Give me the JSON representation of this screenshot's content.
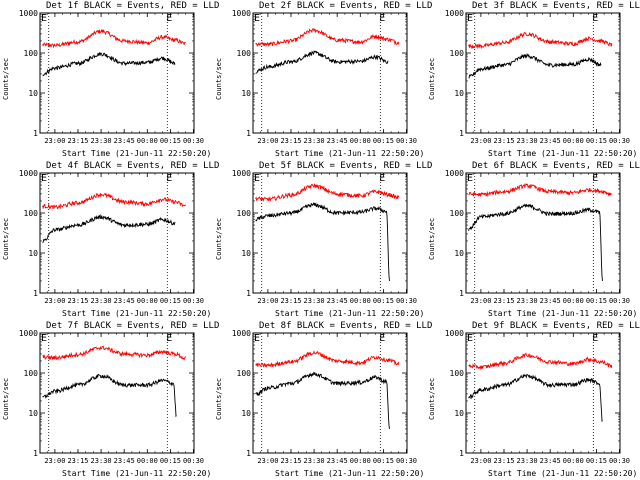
{
  "chart_data": [
    {
      "type": "line",
      "title": "Det 1f BLACK = Events, RED = LLD",
      "xlabel": "Start Time (21-Jun-11 22:50:20)",
      "ylabel": "Counts/sec",
      "yscale": "log",
      "ylim": [
        1,
        1000
      ],
      "ytick_labels": [
        "1",
        "10",
        "100",
        "1000"
      ],
      "xlim": [
        "22:50:20",
        "00:30:20"
      ],
      "xtick_labels": [
        "23:00",
        "23:15",
        "23:30",
        "23:45",
        "00:00",
        "00:15",
        "00:30"
      ],
      "markers_x": [
        "22:56",
        "00:13"
      ],
      "edge_labels": [
        "E",
        "E"
      ],
      "series": [
        {
          "color": "#ff0000",
          "x": [
            "22:52",
            "23:00",
            "23:15",
            "23:30",
            "23:45",
            "00:00",
            "00:10",
            "00:18",
            "00:25"
          ],
          "values": [
            160,
            155,
            190,
            350,
            200,
            180,
            250,
            210,
            170
          ]
        },
        {
          "color": "#000000",
          "x": [
            "22:52",
            "23:00",
            "23:15",
            "23:30",
            "23:45",
            "00:00",
            "00:10",
            "00:18"
          ],
          "values": [
            30,
            42,
            55,
            95,
            55,
            58,
            75,
            55
          ]
        }
      ]
    },
    {
      "type": "line",
      "title": "Det 2f BLACK = Events, RED = LLD",
      "xlabel": "Start Time (21-Jun-11 22:50:20)",
      "ylabel": "Counts/sec",
      "yscale": "log",
      "ylim": [
        1,
        1000
      ],
      "ytick_labels": [
        "1",
        "10",
        "100",
        "1000"
      ],
      "xlim": [
        "22:50:20",
        "00:30:20"
      ],
      "xtick_labels": [
        "23:00",
        "23:15",
        "23:30",
        "23:45",
        "00:00",
        "00:15",
        "00:30"
      ],
      "markers_x": [
        "22:56",
        "00:13"
      ],
      "edge_labels": [
        "E",
        "E"
      ],
      "series": [
        {
          "color": "#ff0000",
          "x": [
            "22:52",
            "23:00",
            "23:15",
            "23:30",
            "23:45",
            "00:00",
            "00:10",
            "00:18",
            "00:25"
          ],
          "values": [
            170,
            165,
            200,
            370,
            210,
            190,
            260,
            220,
            180
          ]
        },
        {
          "color": "#000000",
          "x": [
            "22:52",
            "23:00",
            "23:15",
            "23:30",
            "23:45",
            "00:00",
            "00:10",
            "00:18"
          ],
          "values": [
            35,
            45,
            60,
            100,
            60,
            62,
            80,
            60
          ]
        }
      ]
    },
    {
      "type": "line",
      "title": "Det 3f BLACK = Events, RED = LLD",
      "xlabel": "Start Time (21-Jun-11 22:50:20)",
      "ylabel": "Counts/sec",
      "yscale": "log",
      "ylim": [
        1,
        1000
      ],
      "ytick_labels": [
        "1",
        "10",
        "100",
        "1000"
      ],
      "xlim": [
        "22:50:20",
        "00:30:20"
      ],
      "xtick_labels": [
        "23:00",
        "23:15",
        "23:30",
        "23:45",
        "00:00",
        "00:15",
        "00:30"
      ],
      "markers_x": [
        "22:56",
        "00:13"
      ],
      "edge_labels": [
        "E",
        "E"
      ],
      "series": [
        {
          "color": "#ff0000",
          "x": [
            "22:52",
            "23:00",
            "23:15",
            "23:30",
            "23:45",
            "00:00",
            "00:10",
            "00:18",
            "00:25"
          ],
          "values": [
            150,
            150,
            180,
            300,
            190,
            170,
            230,
            200,
            160
          ]
        },
        {
          "color": "#000000",
          "x": [
            "22:52",
            "23:00",
            "23:15",
            "23:30",
            "23:45",
            "00:00",
            "00:10",
            "00:18"
          ],
          "values": [
            25,
            40,
            50,
            85,
            50,
            52,
            70,
            50
          ]
        }
      ]
    },
    {
      "type": "line",
      "title": "Det 4f BLACK = Events, RED = LLD",
      "xlabel": "Start Time (21-Jun-11 22:50:20)",
      "ylabel": "Counts/sec",
      "yscale": "log",
      "ylim": [
        1,
        1000
      ],
      "ytick_labels": [
        "1",
        "10",
        "100",
        "1000"
      ],
      "xlim": [
        "22:50:20",
        "00:30:20"
      ],
      "xtick_labels": [
        "23:00",
        "23:15",
        "23:30",
        "23:45",
        "00:00",
        "00:15",
        "00:30"
      ],
      "markers_x": [
        "22:56",
        "00:13"
      ],
      "edge_labels": [
        "E",
        "E"
      ],
      "series": [
        {
          "color": "#ff0000",
          "x": [
            "22:52",
            "23:00",
            "23:15",
            "23:30",
            "23:45",
            "00:00",
            "00:10",
            "00:18",
            "00:25"
          ],
          "values": [
            150,
            140,
            180,
            290,
            190,
            170,
            220,
            190,
            150
          ]
        },
        {
          "color": "#000000",
          "x": [
            "22:52",
            "23:00",
            "23:15",
            "23:30",
            "23:45",
            "00:00",
            "00:10",
            "00:18"
          ],
          "values": [
            20,
            38,
            50,
            80,
            50,
            52,
            68,
            55
          ]
        }
      ]
    },
    {
      "type": "line",
      "title": "Det 5f BLACK = Events, RED = LLD",
      "xlabel": "Start Time (21-Jun-11 22:50:20)",
      "ylabel": "Counts/sec",
      "yscale": "log",
      "ylim": [
        1,
        1000
      ],
      "ytick_labels": [
        "1",
        "10",
        "100",
        "1000"
      ],
      "xlim": [
        "22:50:20",
        "00:30:20"
      ],
      "xtick_labels": [
        "23:00",
        "23:15",
        "23:30",
        "23:45",
        "00:00",
        "00:15",
        "00:30"
      ],
      "markers_x": [
        "22:56",
        "00:13"
      ],
      "edge_labels": [
        "E",
        "E"
      ],
      "series": [
        {
          "color": "#ff0000",
          "x": [
            "22:52",
            "23:00",
            "23:15",
            "23:30",
            "23:45",
            "00:00",
            "00:10",
            "00:18",
            "00:25"
          ],
          "values": [
            230,
            220,
            280,
            480,
            300,
            270,
            340,
            290,
            240
          ]
        },
        {
          "color": "#000000",
          "x": [
            "22:52",
            "23:00",
            "23:15",
            "23:30",
            "23:45",
            "00:00",
            "00:10",
            "00:17",
            "00:19"
          ],
          "values": [
            70,
            85,
            100,
            160,
            100,
            105,
            130,
            110,
            2
          ]
        }
      ]
    },
    {
      "type": "line",
      "title": "Det 6f BLACK = Events, RED = LLD",
      "xlabel": "Start Time (21-Jun-11 22:50:20)",
      "ylabel": "Counts/sec",
      "yscale": "log",
      "ylim": [
        1,
        1000
      ],
      "ytick_labels": [
        "1",
        "10",
        "100",
        "1000"
      ],
      "xlim": [
        "22:50:20",
        "00:30:20"
      ],
      "xtick_labels": [
        "23:00",
        "23:15",
        "23:30",
        "23:45",
        "00:00",
        "00:15",
        "00:30"
      ],
      "markers_x": [
        "22:56",
        "00:13"
      ],
      "edge_labels": [
        "E",
        "E"
      ],
      "series": [
        {
          "color": "#ff0000",
          "x": [
            "22:52",
            "23:00",
            "23:15",
            "23:30",
            "23:45",
            "00:00",
            "00:10",
            "00:18",
            "00:25"
          ],
          "values": [
            300,
            290,
            340,
            480,
            340,
            320,
            380,
            350,
            300
          ]
        },
        {
          "color": "#000000",
          "x": [
            "22:52",
            "23:00",
            "23:15",
            "23:30",
            "23:45",
            "00:00",
            "00:10",
            "00:17",
            "00:19"
          ],
          "values": [
            40,
            80,
            95,
            150,
            95,
            100,
            120,
            105,
            2
          ]
        }
      ]
    },
    {
      "type": "line",
      "title": "Det 7f BLACK = Events, RED = LLD",
      "xlabel": "Start Time (21-Jun-11 22:50:20)",
      "ylabel": "Counts/sec",
      "yscale": "log",
      "ylim": [
        1,
        1000
      ],
      "ytick_labels": [
        "1",
        "10",
        "100",
        "1000"
      ],
      "xlim": [
        "22:50:20",
        "00:30:20"
      ],
      "xtick_labels": [
        "23:00",
        "23:15",
        "23:30",
        "23:45",
        "00:00",
        "00:15",
        "00:30"
      ],
      "markers_x": [
        "22:56",
        "00:13"
      ],
      "edge_labels": [
        "E",
        "E"
      ],
      "series": [
        {
          "color": "#ff0000",
          "x": [
            "22:52",
            "23:00",
            "23:15",
            "23:30",
            "23:45",
            "00:00",
            "00:10",
            "00:18",
            "00:25"
          ],
          "values": [
            250,
            240,
            290,
            430,
            300,
            280,
            340,
            300,
            230
          ]
        },
        {
          "color": "#000000",
          "x": [
            "22:52",
            "23:00",
            "23:15",
            "23:30",
            "23:45",
            "00:00",
            "00:10",
            "00:17",
            "00:19"
          ],
          "values": [
            25,
            35,
            50,
            85,
            50,
            50,
            65,
            55,
            8
          ]
        }
      ]
    },
    {
      "type": "line",
      "title": "Det 8f BLACK = Events, RED = LLD",
      "xlabel": "Start Time (21-Jun-11 22:50:20)",
      "ylabel": "Counts/sec",
      "yscale": "log",
      "ylim": [
        1,
        1000
      ],
      "ytick_labels": [
        "1",
        "10",
        "100",
        "1000"
      ],
      "xlim": [
        "22:50:20",
        "00:30:20"
      ],
      "xtick_labels": [
        "23:00",
        "23:15",
        "23:30",
        "23:45",
        "00:00",
        "00:15",
        "00:30"
      ],
      "markers_x": [
        "22:56",
        "00:13"
      ],
      "edge_labels": [
        "E",
        "E"
      ],
      "series": [
        {
          "color": "#ff0000",
          "x": [
            "22:52",
            "23:00",
            "23:15",
            "23:30",
            "23:45",
            "00:00",
            "00:10",
            "00:18",
            "00:25"
          ],
          "values": [
            160,
            155,
            190,
            320,
            200,
            180,
            250,
            210,
            170
          ]
        },
        {
          "color": "#000000",
          "x": [
            "22:52",
            "23:00",
            "23:15",
            "23:30",
            "23:45",
            "00:00",
            "00:10",
            "00:17",
            "00:19"
          ],
          "values": [
            30,
            42,
            55,
            95,
            55,
            58,
            78,
            60,
            4
          ]
        }
      ]
    },
    {
      "type": "line",
      "title": "Det 9f BLACK = Events, RED = LLD",
      "xlabel": "Start Time (21-Jun-11 22:50:20)",
      "ylabel": "Counts/sec",
      "yscale": "log",
      "ylim": [
        1,
        1000
      ],
      "ytick_labels": [
        "1",
        "10",
        "100",
        "1000"
      ],
      "xlim": [
        "22:50:20",
        "00:30:20"
      ],
      "xtick_labels": [
        "23:00",
        "23:15",
        "23:30",
        "23:45",
        "00:00",
        "00:15",
        "00:30"
      ],
      "markers_x": [
        "22:56",
        "00:13"
      ],
      "edge_labels": [
        "E",
        "E"
      ],
      "series": [
        {
          "color": "#ff0000",
          "x": [
            "22:52",
            "23:00",
            "23:15",
            "23:30",
            "23:45",
            "00:00",
            "00:10",
            "00:18",
            "00:25"
          ],
          "values": [
            150,
            140,
            175,
            280,
            190,
            170,
            220,
            190,
            150
          ]
        },
        {
          "color": "#000000",
          "x": [
            "22:52",
            "23:00",
            "23:15",
            "23:30",
            "23:45",
            "00:00",
            "00:10",
            "00:17",
            "00:19"
          ],
          "values": [
            25,
            38,
            50,
            85,
            50,
            52,
            68,
            55,
            6
          ]
        }
      ]
    }
  ]
}
